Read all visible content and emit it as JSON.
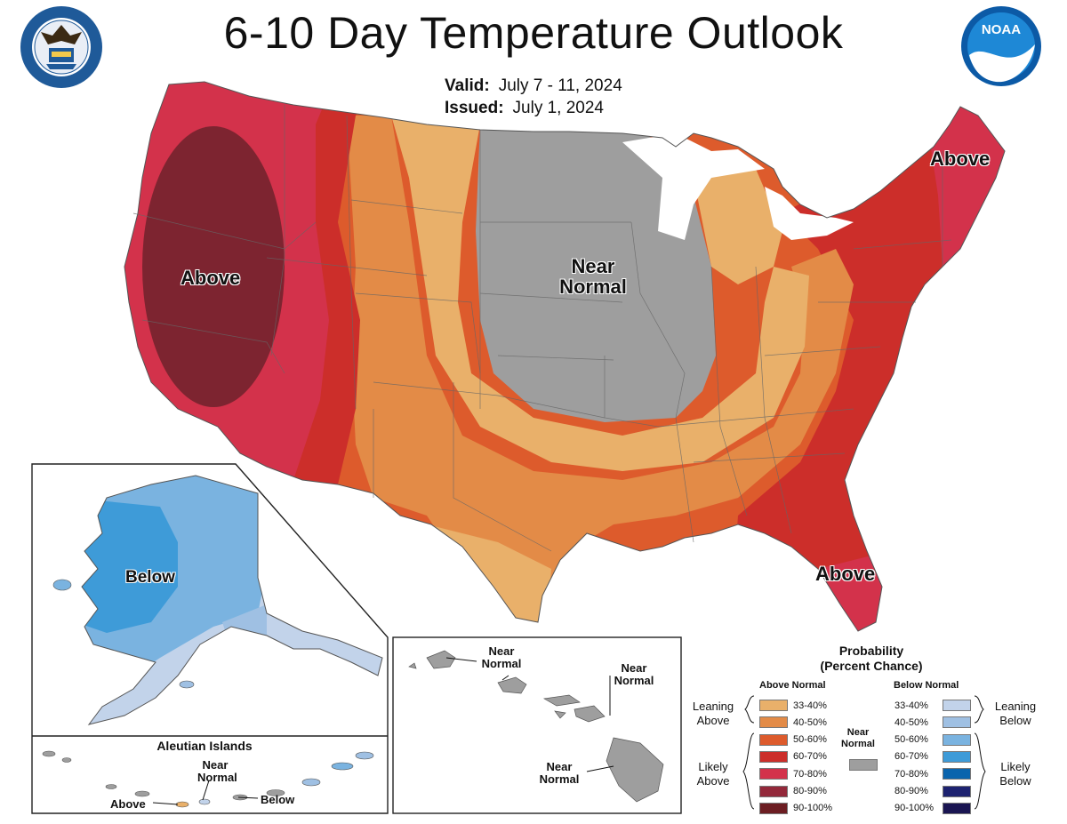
{
  "header": {
    "title": "6-10 Day Temperature Outlook",
    "valid_label": "Valid:",
    "valid_value": "July 7 - 11, 2024",
    "issued_label": "Issued:",
    "issued_value": "July 1, 2024",
    "left_logo_icon": "department-of-commerce-seal-icon",
    "right_logo_icon": "noaa-logo-icon"
  },
  "map_labels": {
    "west": "Above",
    "northeast": "Above",
    "florida": "Above",
    "central_line1": "Near",
    "central_line2": "Normal",
    "alaska": "Below"
  },
  "aleutian": {
    "title": "Aleutian Islands",
    "above": "Above",
    "near1": "Near",
    "near2": "Normal",
    "below": "Below"
  },
  "hawaii": {
    "label_a1": "Near",
    "label_a2": "Normal",
    "label_b1": "Near",
    "label_b2": "Normal",
    "label_c1": "Near",
    "label_c2": "Normal"
  },
  "legend": {
    "title_line1": "Probability",
    "title_line2": "(Percent Chance)",
    "above_header": "Above Normal",
    "below_header": "Below Normal",
    "near_label1": "Near",
    "near_label2": "Normal",
    "near_color": "#9e9e9e",
    "leaning_above1": "Leaning",
    "leaning_above2": "Above",
    "likely_above1": "Likely",
    "likely_above2": "Above",
    "leaning_below1": "Leaning",
    "leaning_below2": "Below",
    "likely_below1": "Likely",
    "likely_below2": "Below",
    "above": [
      {
        "range": "33-40%",
        "color": "#e9b06a"
      },
      {
        "range": "40-50%",
        "color": "#e38b47"
      },
      {
        "range": "50-60%",
        "color": "#dd5b2c"
      },
      {
        "range": "60-70%",
        "color": "#cc2e2a"
      },
      {
        "range": "70-80%",
        "color": "#d3324b"
      },
      {
        "range": "80-90%",
        "color": "#93283a"
      },
      {
        "range": "90-100%",
        "color": "#6c1d22"
      }
    ],
    "below": [
      {
        "range": "33-40%",
        "color": "#c2d3ea"
      },
      {
        "range": "40-50%",
        "color": "#9fc0e3"
      },
      {
        "range": "50-60%",
        "color": "#7ab3e0"
      },
      {
        "range": "60-70%",
        "color": "#3e9bd8"
      },
      {
        "range": "70-80%",
        "color": "#0a64ad"
      },
      {
        "range": "80-90%",
        "color": "#1d2270"
      },
      {
        "range": "90-100%",
        "color": "#1a1552"
      }
    ]
  }
}
